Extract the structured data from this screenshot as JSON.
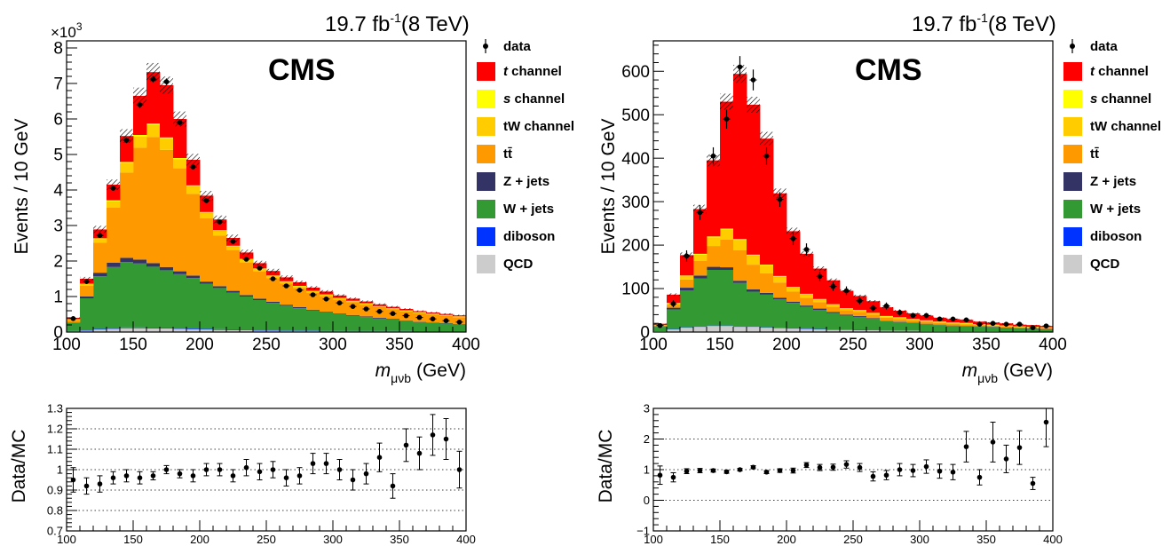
{
  "chart_data": [
    {
      "type": "bar",
      "stacked": true,
      "panel": "left-top",
      "lumi_label": "19.7 fb",
      "lumi_exp": "-1",
      "lumi_energy": "(8 TeV)",
      "cms_label": "CMS",
      "ylabel": "Events / 10 GeV",
      "exponent_prefix": "×10",
      "exponent_power": "3",
      "xlabel_var": "m",
      "xlabel_sub": "μνb",
      "xlabel_unit": "(GeV)",
      "xlim": [
        100,
        400
      ],
      "ylim": [
        0,
        8.2
      ],
      "xticks": [
        "100",
        "150",
        "200",
        "250",
        "300",
        "350",
        "400"
      ],
      "yticks": [
        "0",
        "1",
        "2",
        "3",
        "4",
        "5",
        "6",
        "7",
        "8"
      ],
      "categories": [
        105,
        115,
        125,
        135,
        145,
        155,
        165,
        175,
        185,
        195,
        205,
        215,
        225,
        235,
        245,
        255,
        265,
        275,
        285,
        295,
        305,
        315,
        325,
        335,
        345,
        355,
        365,
        375,
        385,
        395
      ],
      "series": [
        {
          "name": "QCD",
          "color": "#cccccc",
          "values": [
            0.02,
            0.04,
            0.07,
            0.09,
            0.11,
            0.11,
            0.1,
            0.1,
            0.09,
            0.08,
            0.07,
            0.06,
            0.05,
            0.05,
            0.04,
            0.04,
            0.03,
            0.03,
            0.03,
            0.02,
            0.02,
            0.02,
            0.02,
            0.02,
            0.02,
            0.02,
            0.01,
            0.01,
            0.01,
            0.01
          ]
        },
        {
          "name": "diboson",
          "color": "#0033ff",
          "values": [
            0.01,
            0.01,
            0.02,
            0.02,
            0.02,
            0.02,
            0.02,
            0.02,
            0.02,
            0.02,
            0.02,
            0.02,
            0.02,
            0.01,
            0.01,
            0.01,
            0.01,
            0.01,
            0.01,
            0.01,
            0.01,
            0.01,
            0.01,
            0.01,
            0.01,
            0.01,
            0.01,
            0.01,
            0.01,
            0.01
          ]
        },
        {
          "name": "W + jets",
          "color": "#339933",
          "values": [
            0.22,
            0.9,
            1.48,
            1.72,
            1.84,
            1.8,
            1.72,
            1.62,
            1.52,
            1.42,
            1.27,
            1.16,
            1.04,
            0.94,
            0.85,
            0.77,
            0.7,
            0.63,
            0.57,
            0.52,
            0.47,
            0.43,
            0.39,
            0.35,
            0.32,
            0.29,
            0.26,
            0.24,
            0.22,
            0.2
          ]
        },
        {
          "name": "Z + jets",
          "color": "#333366",
          "values": [
            0.01,
            0.05,
            0.1,
            0.12,
            0.12,
            0.11,
            0.1,
            0.09,
            0.08,
            0.07,
            0.06,
            0.05,
            0.05,
            0.04,
            0.04,
            0.03,
            0.03,
            0.03,
            0.02,
            0.02,
            0.02,
            0.02,
            0.02,
            0.02,
            0.02,
            0.01,
            0.01,
            0.01,
            0.01,
            0.01
          ]
        },
        {
          "name": "tt̄",
          "color": "#ff9900",
          "values": [
            0.08,
            0.3,
            0.85,
            1.55,
            2.4,
            3.15,
            3.55,
            3.3,
            2.9,
            2.3,
            1.78,
            1.43,
            1.15,
            0.92,
            0.77,
            0.67,
            0.6,
            0.54,
            0.48,
            0.44,
            0.4,
            0.36,
            0.33,
            0.3,
            0.27,
            0.25,
            0.24,
            0.22,
            0.2,
            0.18
          ]
        },
        {
          "name": "tW channel",
          "color": "#ffcc00",
          "values": [
            0.01,
            0.05,
            0.1,
            0.18,
            0.26,
            0.32,
            0.34,
            0.31,
            0.26,
            0.21,
            0.16,
            0.13,
            0.1,
            0.09,
            0.07,
            0.06,
            0.05,
            0.05,
            0.04,
            0.04,
            0.03,
            0.03,
            0.03,
            0.02,
            0.02,
            0.02,
            0.02,
            0.02,
            0.02,
            0.02
          ]
        },
        {
          "name": "s channel",
          "color": "#ffff00",
          "values": [
            0.01,
            0.01,
            0.02,
            0.03,
            0.04,
            0.04,
            0.04,
            0.04,
            0.03,
            0.03,
            0.02,
            0.02,
            0.02,
            0.01,
            0.01,
            0.01,
            0.01,
            0.01,
            0.01,
            0.01,
            0.01,
            0.01,
            0.01,
            0.01,
            0.01,
            0.01,
            0.01,
            0.01,
            0.01,
            0.01
          ]
        },
        {
          "name": "t channel",
          "color": "#ff0000",
          "values": [
            0.04,
            0.14,
            0.25,
            0.44,
            0.73,
            1.1,
            1.45,
            1.47,
            1.1,
            0.72,
            0.46,
            0.3,
            0.22,
            0.18,
            0.15,
            0.13,
            0.11,
            0.1,
            0.09,
            0.08,
            0.07,
            0.06,
            0.05,
            0.05,
            0.04,
            0.04,
            0.03,
            0.03,
            0.03,
            0.03
          ]
        }
      ],
      "data_points": {
        "name": "data",
        "x": [
          105,
          115,
          125,
          135,
          145,
          155,
          165,
          175,
          185,
          195,
          205,
          215,
          225,
          235,
          245,
          255,
          265,
          275,
          285,
          295,
          305,
          315,
          325,
          335,
          345,
          355,
          365,
          375,
          385,
          395
        ],
        "y": [
          0.38,
          1.42,
          2.72,
          4.05,
          5.4,
          6.4,
          7.12,
          7.05,
          5.9,
          4.65,
          3.7,
          3.1,
          2.55,
          2.05,
          1.8,
          1.5,
          1.3,
          1.18,
          1.05,
          0.93,
          0.82,
          0.72,
          0.65,
          0.58,
          0.52,
          0.46,
          0.41,
          0.37,
          0.32,
          0.28
        ],
        "err": [
          0.03,
          0.05,
          0.06,
          0.07,
          0.08,
          0.09,
          0.09,
          0.09,
          0.08,
          0.07,
          0.07,
          0.06,
          0.05,
          0.05,
          0.05,
          0.04,
          0.04,
          0.04,
          0.04,
          0.04,
          0.03,
          0.03,
          0.03,
          0.03,
          0.03,
          0.03,
          0.03,
          0.02,
          0.02,
          0.02
        ]
      },
      "legend_position": "right"
    },
    {
      "type": "scatter",
      "panel": "left-ratio",
      "ylabel": "Data/MC",
      "xlim": [
        100,
        400
      ],
      "ylim": [
        0.7,
        1.3
      ],
      "xticks": [
        "100",
        "150",
        "200",
        "250",
        "300",
        "350",
        "400"
      ],
      "yticks": [
        "0.7",
        "0.8",
        "0.9",
        "1",
        "1.1",
        "1.2",
        "1.3"
      ],
      "grid": true,
      "x": [
        105,
        115,
        125,
        135,
        145,
        155,
        165,
        175,
        185,
        195,
        205,
        215,
        225,
        235,
        245,
        255,
        265,
        275,
        285,
        295,
        305,
        315,
        325,
        335,
        345,
        355,
        365,
        375,
        385,
        395
      ],
      "y": [
        0.95,
        0.92,
        0.93,
        0.96,
        0.97,
        0.96,
        0.97,
        1.0,
        0.98,
        0.97,
        1.0,
        1.0,
        0.97,
        1.01,
        0.99,
        1.0,
        0.96,
        0.97,
        1.03,
        1.03,
        1.0,
        0.95,
        0.98,
        1.06,
        0.92,
        1.12,
        1.08,
        1.17,
        1.15,
        1.0
      ],
      "err": [
        0.06,
        0.04,
        0.04,
        0.03,
        0.03,
        0.03,
        0.02,
        0.02,
        0.02,
        0.03,
        0.03,
        0.03,
        0.03,
        0.04,
        0.04,
        0.04,
        0.04,
        0.04,
        0.05,
        0.05,
        0.05,
        0.05,
        0.05,
        0.07,
        0.06,
        0.08,
        0.08,
        0.1,
        0.1,
        0.09
      ]
    },
    {
      "type": "bar",
      "stacked": true,
      "panel": "right-top",
      "lumi_label": "19.7 fb",
      "lumi_exp": "-1",
      "lumi_energy": "(8 TeV)",
      "cms_label": "CMS",
      "ylabel": "Events / 10 GeV",
      "xlabel_var": "m",
      "xlabel_sub": "μνb",
      "xlabel_unit": "(GeV)",
      "xlim": [
        100,
        400
      ],
      "ylim": [
        0,
        670
      ],
      "xticks": [
        "100",
        "150",
        "200",
        "250",
        "300",
        "350",
        "400"
      ],
      "yticks": [
        "0",
        "100",
        "200",
        "300",
        "400",
        "500",
        "600"
      ],
      "categories": [
        105,
        115,
        125,
        135,
        145,
        155,
        165,
        175,
        185,
        195,
        205,
        215,
        225,
        235,
        245,
        255,
        265,
        275,
        285,
        295,
        305,
        315,
        325,
        335,
        345,
        355,
        365,
        375,
        385,
        395
      ],
      "series": [
        {
          "name": "QCD",
          "color": "#cccccc",
          "values": [
            2,
            6,
            10,
            12,
            14,
            14,
            12,
            12,
            10,
            9,
            8,
            7,
            6,
            5,
            5,
            4,
            4,
            3,
            3,
            3,
            2,
            2,
            2,
            2,
            2,
            2,
            1,
            1,
            1,
            1
          ]
        },
        {
          "name": "diboson",
          "color": "#0033ff",
          "values": [
            0,
            1,
            1,
            1,
            1,
            1,
            1,
            1,
            1,
            1,
            1,
            1,
            1,
            1,
            1,
            1,
            0,
            0,
            0,
            0,
            0,
            0,
            0,
            0,
            0,
            0,
            0,
            0,
            0,
            0
          ]
        },
        {
          "name": "W + jets",
          "color": "#339933",
          "values": [
            10,
            45,
            85,
            110,
            128,
            128,
            100,
            80,
            75,
            65,
            58,
            50,
            44,
            38,
            32,
            30,
            26,
            22,
            20,
            18,
            16,
            14,
            12,
            11,
            10,
            9,
            8,
            7,
            6,
            5
          ]
        },
        {
          "name": "Z + jets",
          "color": "#333366",
          "values": [
            1,
            4,
            6,
            7,
            7,
            6,
            5,
            5,
            4,
            4,
            3,
            3,
            3,
            2,
            2,
            2,
            2,
            1,
            1,
            1,
            1,
            1,
            1,
            1,
            1,
            1,
            1,
            1,
            1,
            1
          ]
        },
        {
          "name": "tt̄",
          "color": "#ff9900",
          "values": [
            2,
            7,
            19,
            34,
            48,
            64,
            70,
            57,
            45,
            35,
            23,
            18,
            15,
            12,
            10,
            9,
            8,
            7,
            6,
            5,
            5,
            4,
            4,
            4,
            3,
            3,
            3,
            2,
            2,
            2
          ]
        },
        {
          "name": "tW channel",
          "color": "#ffcc00",
          "values": [
            1,
            3,
            8,
            14,
            20,
            23,
            24,
            21,
            18,
            13,
            10,
            8,
            6,
            5,
            4,
            4,
            3,
            3,
            3,
            2,
            2,
            2,
            2,
            2,
            1,
            1,
            1,
            1,
            1,
            1
          ]
        },
        {
          "name": "s channel",
          "color": "#ffff00",
          "values": [
            0,
            1,
            1,
            2,
            2,
            2,
            2,
            2,
            2,
            2,
            1,
            1,
            1,
            1,
            1,
            1,
            1,
            1,
            1,
            1,
            1,
            1,
            1,
            1,
            1,
            1,
            1,
            1,
            1,
            1
          ]
        },
        {
          "name": "t channel",
          "color": "#ff0000",
          "values": [
            3,
            19,
            47,
            103,
            175,
            292,
            380,
            345,
            290,
            190,
            128,
            92,
            70,
            55,
            40,
            32,
            27,
            20,
            15,
            13,
            11,
            9,
            8,
            7,
            6,
            5,
            5,
            4,
            4,
            3
          ]
        }
      ],
      "data_points": {
        "name": "data",
        "x": [
          105,
          115,
          125,
          135,
          145,
          155,
          165,
          175,
          185,
          195,
          205,
          215,
          225,
          235,
          245,
          255,
          265,
          275,
          285,
          295,
          305,
          315,
          325,
          335,
          345,
          355,
          365,
          375,
          385,
          395
        ],
        "y": [
          15,
          65,
          175,
          275,
          405,
          490,
          610,
          580,
          405,
          305,
          215,
          190,
          128,
          105,
          95,
          72,
          55,
          60,
          45,
          38,
          38,
          30,
          30,
          28,
          18,
          20,
          18,
          18,
          10,
          14
        ],
        "err": [
          4,
          8,
          13,
          17,
          20,
          22,
          25,
          24,
          20,
          17,
          15,
          14,
          11,
          10,
          10,
          8,
          7,
          8,
          7,
          6,
          6,
          5,
          5,
          5,
          4,
          4,
          4,
          4,
          3,
          4
        ]
      },
      "legend_position": "right"
    },
    {
      "type": "scatter",
      "panel": "right-ratio",
      "ylabel": "Data/MC",
      "xlim": [
        100,
        400
      ],
      "ylim": [
        -1,
        3
      ],
      "xticks": [
        "100",
        "150",
        "200",
        "250",
        "300",
        "350",
        "400"
      ],
      "yticks": [
        "−1",
        "0",
        "1",
        "2",
        "3"
      ],
      "grid": true,
      "x": [
        105,
        115,
        125,
        135,
        145,
        155,
        165,
        175,
        185,
        195,
        205,
        215,
        225,
        235,
        245,
        255,
        265,
        275,
        285,
        295,
        305,
        315,
        325,
        335,
        345,
        355,
        365,
        375,
        385,
        395
      ],
      "y": [
        0.82,
        0.75,
        0.95,
        0.97,
        0.97,
        0.93,
        1.0,
        1.08,
        0.92,
        0.97,
        0.97,
        1.15,
        1.07,
        1.08,
        1.17,
        1.07,
        0.78,
        0.82,
        1.0,
        0.97,
        1.1,
        0.95,
        0.92,
        1.75,
        0.75,
        1.9,
        1.35,
        1.72,
        0.55,
        2.55
      ],
      "err": [
        0.3,
        0.15,
        0.08,
        0.07,
        0.05,
        0.05,
        0.04,
        0.05,
        0.05,
        0.06,
        0.08,
        0.08,
        0.1,
        0.1,
        0.12,
        0.13,
        0.15,
        0.15,
        0.2,
        0.2,
        0.22,
        0.23,
        0.25,
        0.5,
        0.25,
        0.65,
        0.45,
        0.55,
        0.2,
        0.8
      ]
    }
  ]
}
